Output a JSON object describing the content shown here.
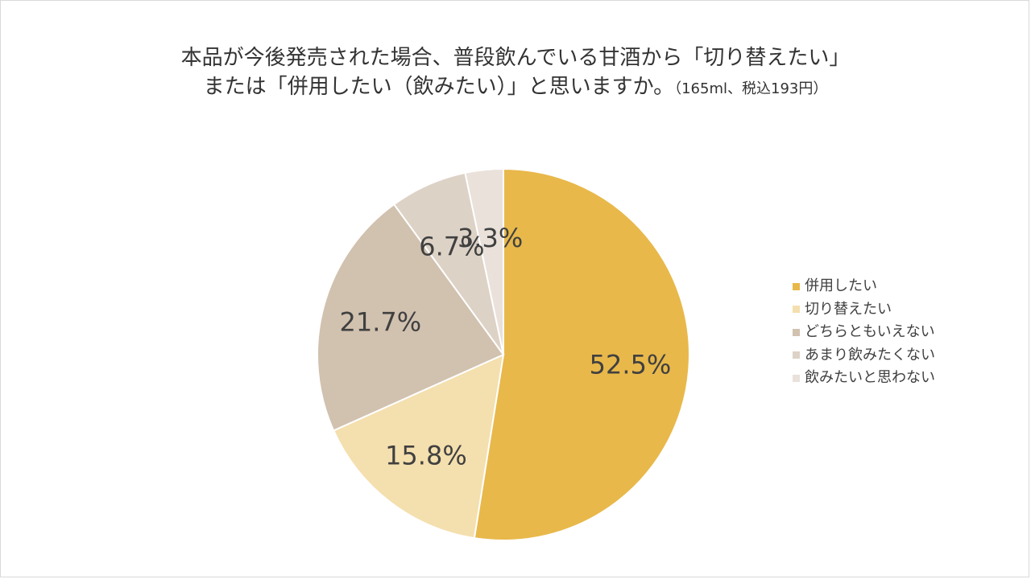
{
  "chart_data": {
    "type": "pie",
    "title_line1": "本品が今後発売された場合、普段飲んでいる甘酒から「切り替えたい」",
    "title_line2": "または「併用したい（飲みたい）」と思いますか。",
    "title_note": "（165ml、税込193円）",
    "categories": [
      "併用したい",
      "切り替えたい",
      "どちらともいえない",
      "あまり飲みたくない",
      "飲みたいと思わない"
    ],
    "values": [
      52.5,
      15.8,
      21.7,
      6.7,
      3.3
    ],
    "data_labels": [
      "52.5%",
      "15.8%",
      "21.7%",
      "6.7%",
      "3.3%"
    ],
    "colors": [
      "#E8B84A",
      "#F4DFAE",
      "#D1C1AF",
      "#DDD2C6",
      "#E9E1DA"
    ],
    "legend_position": "right"
  }
}
